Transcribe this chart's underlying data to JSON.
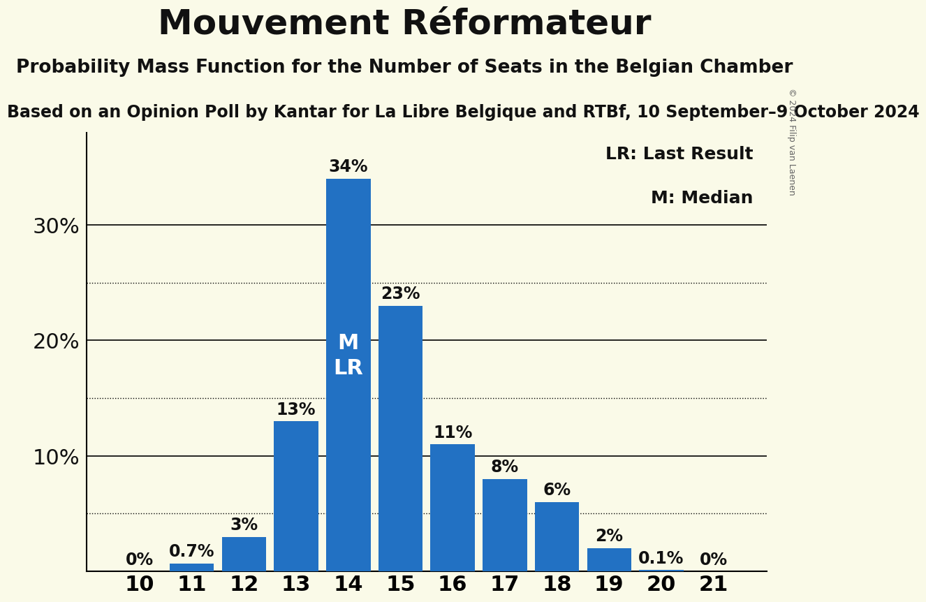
{
  "title": "Mouvement Réformateur",
  "subtitle": "Probability Mass Function for the Number of Seats in the Belgian Chamber",
  "sub_subtitle": "Based on an Opinion Poll by Kantar for La Libre Belgique and RTBf, 10 September–9 October 2024",
  "copyright": "© 2024 Filip van Laenen",
  "categories": [
    10,
    11,
    12,
    13,
    14,
    15,
    16,
    17,
    18,
    19,
    20,
    21
  ],
  "values": [
    0.0,
    0.7,
    3.0,
    13.0,
    34.0,
    23.0,
    11.0,
    8.0,
    6.0,
    2.0,
    0.1,
    0.0
  ],
  "bar_color": "#2271C3",
  "background_color": "#FAFAE8",
  "label_color": "#111111",
  "bar_label_color_dark": "#111111",
  "bar_label_color_light": "#FFFFFF",
  "median_seat": 14,
  "last_result_seat": 14,
  "median_label": "M",
  "last_result_label": "LR",
  "legend_lr": "LR: Last Result",
  "legend_m": "M: Median",
  "yticks": [
    0,
    10,
    20,
    30
  ],
  "ytick_dotted": [
    5,
    15,
    25
  ],
  "ylim": [
    0,
    38
  ],
  "title_fontsize": 36,
  "subtitle_fontsize": 19,
  "sub_subtitle_fontsize": 17,
  "bar_label_fontsize": 17,
  "legend_fontsize": 18,
  "ytick_fontsize": 22,
  "xtick_fontsize": 22,
  "mlr_fontsize": 22,
  "copyright_fontsize": 9
}
